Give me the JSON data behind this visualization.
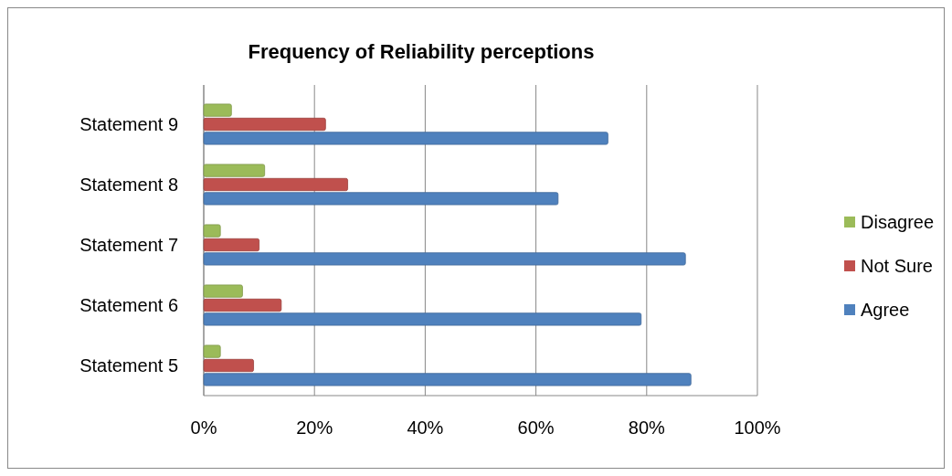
{
  "chart_data": {
    "type": "bar",
    "orientation": "horizontal",
    "title": "Frequency of Reliability perceptions",
    "categories": [
      "Statement 9",
      "Statement 8",
      "Statement 7",
      "Statement 6",
      "Statement 5"
    ],
    "series": [
      {
        "name": "Agree",
        "color": "#4f81bd",
        "values": [
          73,
          64,
          87,
          79,
          88
        ]
      },
      {
        "name": "Not Sure",
        "color": "#c0504d",
        "values": [
          22,
          26,
          10,
          14,
          9
        ]
      },
      {
        "name": "Disagree",
        "color": "#9bbb59",
        "values": [
          5,
          11,
          3,
          7,
          3
        ]
      }
    ],
    "xlim": [
      0,
      100
    ],
    "xticks": [
      {
        "value": 0,
        "label": "0%"
      },
      {
        "value": 20,
        "label": "20%"
      },
      {
        "value": 40,
        "label": "40%"
      },
      {
        "value": 60,
        "label": "60%"
      },
      {
        "value": 80,
        "label": "80%"
      },
      {
        "value": 100,
        "label": "100%"
      }
    ],
    "grid": "x",
    "legend": "right"
  }
}
